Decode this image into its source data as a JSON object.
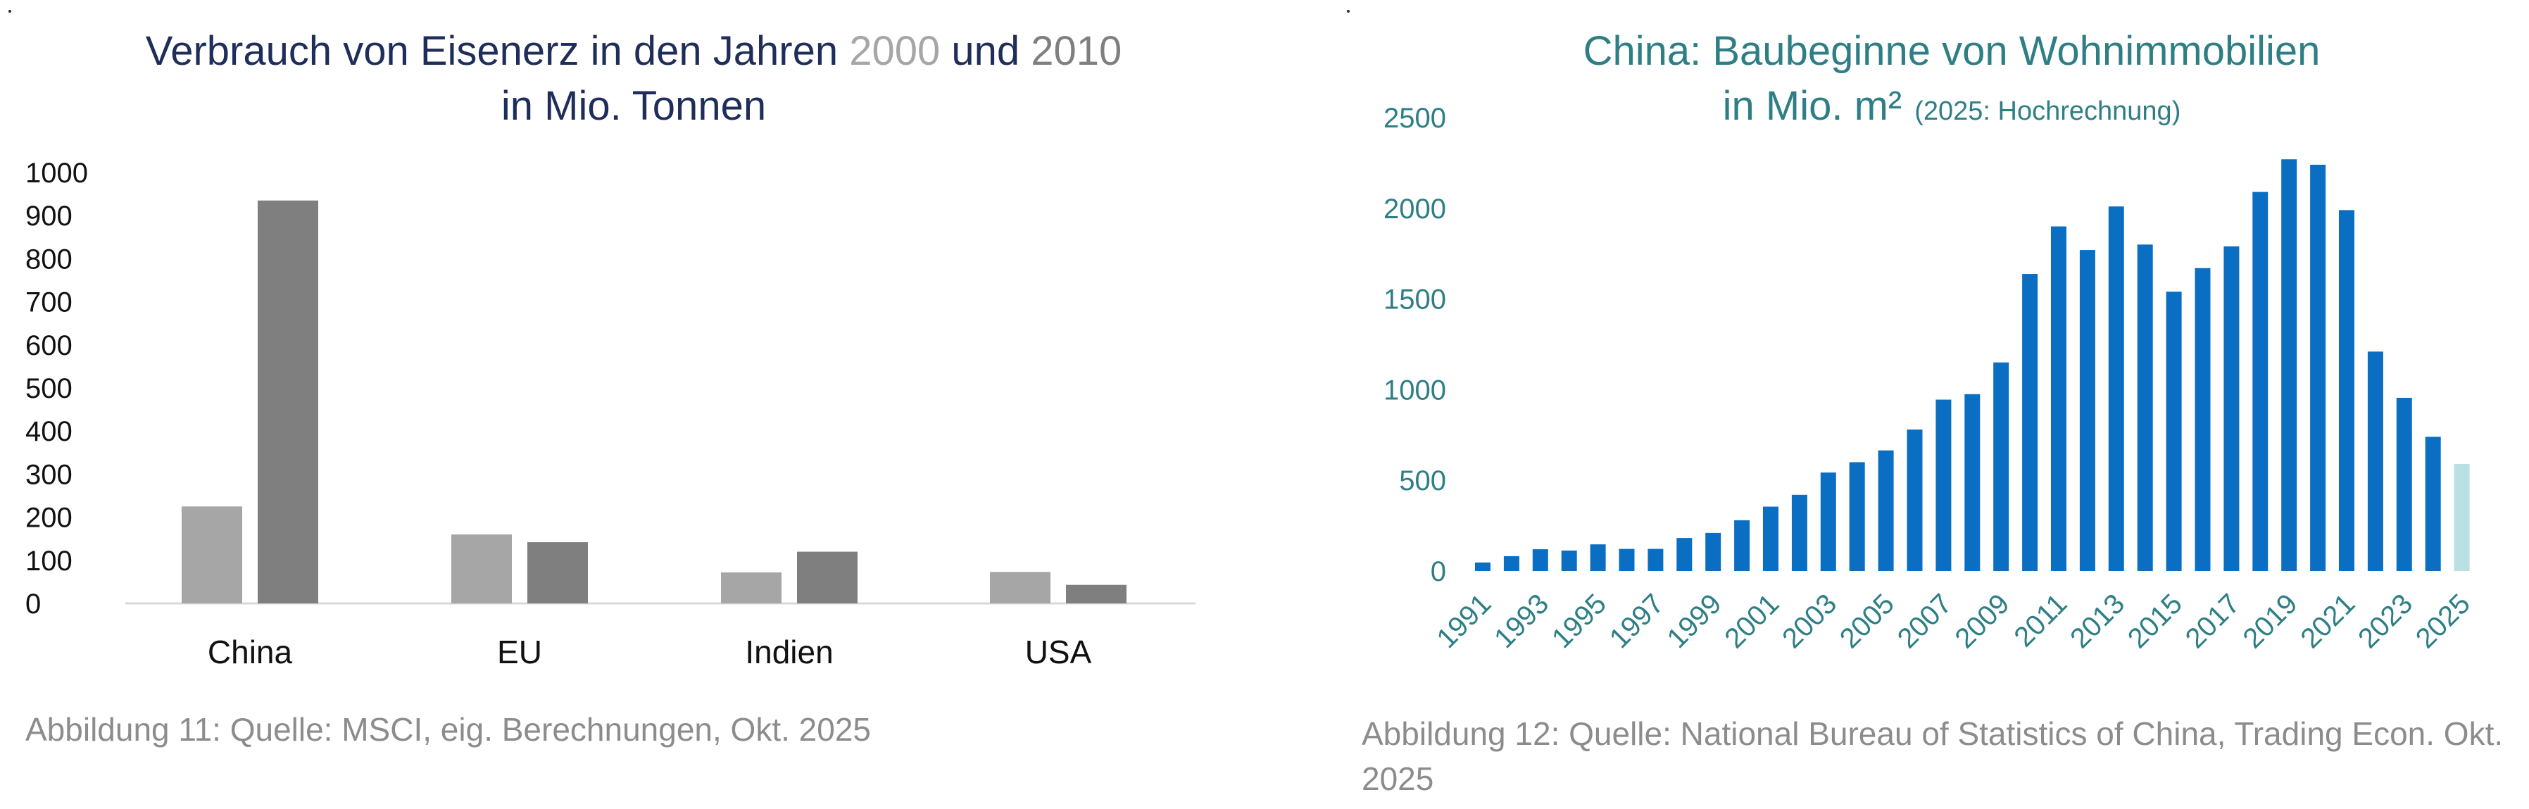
{
  "chart_data": [
    {
      "type": "bar",
      "title": {
        "part1": "Verbrauch von Eisenerz in den Jahren ",
        "year1": "2000",
        "part2": " und ",
        "year2": "2010",
        "line2": "in Mio. Tonnen"
      },
      "categories": [
        "China",
        "EU",
        "Indien",
        "USA"
      ],
      "series": [
        {
          "name": "2000",
          "color": "#a6a6a6",
          "values": [
            225,
            160,
            72,
            73
          ]
        },
        {
          "name": "2010",
          "color": "#7f7f7f",
          "values": [
            935,
            142,
            120,
            43
          ]
        }
      ],
      "ylim": [
        0,
        1000
      ],
      "yticks": [
        "0",
        "100",
        "200",
        "300",
        "400",
        "500",
        "600",
        "700",
        "800",
        "900",
        "1000"
      ],
      "xlabel": "",
      "ylabel": "",
      "legend": "none (years colored in title)",
      "caption": "Abbildung 11: Quelle: MSCI, eig. Berechnungen, Okt. 2025"
    },
    {
      "type": "bar",
      "title": {
        "line1": "China: Baubeginne von Wohnimmobilien",
        "line2": "in Mio. m²",
        "note": "(2025: Hochrechnung)"
      },
      "x": [
        "1991",
        "1992",
        "1993",
        "1994",
        "1995",
        "1996",
        "1997",
        "1998",
        "1999",
        "2000",
        "2001",
        "2002",
        "2003",
        "2004",
        "2005",
        "2006",
        "2007",
        "2008",
        "2009",
        "2010",
        "2011",
        "2012",
        "2013",
        "2014",
        "2015",
        "2016",
        "2017",
        "2018",
        "2019",
        "2020",
        "2021",
        "2022",
        "2023",
        "2024",
        "2025"
      ],
      "values": [
        47,
        82,
        120,
        113,
        147,
        122,
        122,
        182,
        210,
        280,
        355,
        420,
        543,
        600,
        665,
        780,
        945,
        975,
        1150,
        1638,
        1900,
        1770,
        2010,
        1800,
        1540,
        1670,
        1790,
        2090,
        2270,
        2240,
        1990,
        1210,
        955,
        740,
        590
      ],
      "color": "#0a6fc2",
      "projection_color": "#b9e0e3",
      "projection_years": [
        "2025"
      ],
      "ylim": [
        0,
        2500
      ],
      "yticks": [
        "0",
        "500",
        "1000",
        "1500",
        "2000",
        "2500"
      ],
      "xticks_labeled": [
        "1991",
        "1993",
        "1995",
        "1997",
        "1999",
        "2001",
        "2003",
        "2005",
        "2007",
        "2009",
        "2011",
        "2013",
        "2015",
        "2017",
        "2019",
        "2021",
        "2023",
        "2025"
      ],
      "xlabel": "",
      "ylabel": "",
      "caption": "Abbildung 12: Quelle: National Bureau of Statistics of China, Trading Econ. Okt. 2025"
    }
  ]
}
